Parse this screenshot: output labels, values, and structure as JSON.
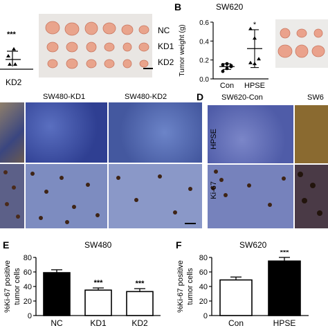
{
  "panel_a": {
    "significance": "***",
    "group_label": "KD2",
    "rows": [
      "NC",
      "KD1",
      "KD2"
    ]
  },
  "panel_b": {
    "letter": "B",
    "title": "SW620",
    "ylabel": "Tumor weight (g)",
    "yticks": [
      "0.0",
      "0.2",
      "0.4",
      "0.6"
    ],
    "groups": [
      "Con",
      "HPSE"
    ],
    "significance": "*"
  },
  "panel_c": {
    "columns": [
      "SW480-KD1",
      "SW480-KD2"
    ]
  },
  "panel_d": {
    "letter": "D",
    "columns": [
      "SW620-Con",
      "SW6"
    ],
    "rows": [
      "HPSE",
      "Ki-67"
    ]
  },
  "panel_e": {
    "letter": "E",
    "title": "SW480",
    "ylabel_line1": "%Ki-67 positive",
    "ylabel_line2": "tumor cells",
    "yticks": [
      "0",
      "20",
      "40",
      "60",
      "80"
    ],
    "categories": [
      "NC",
      "KD1",
      "KD2"
    ],
    "significance": [
      "",
      "***",
      "***"
    ]
  },
  "panel_f": {
    "letter": "F",
    "title": "SW620",
    "ylabel_line1": "%Ki-67 positive",
    "ylabel_line2": "tumor cells",
    "yticks": [
      "0",
      "20",
      "40",
      "60",
      "80"
    ],
    "categories": [
      "Con",
      "HPSE"
    ],
    "significance": [
      "",
      "***"
    ]
  },
  "chart_data": [
    {
      "type": "scatter",
      "title": "SW620",
      "ylabel": "Tumor weight (g)",
      "categories": [
        "Con",
        "HPSE"
      ],
      "means": [
        0.13,
        0.32
      ],
      "sd": [
        0.03,
        0.2
      ],
      "points": [
        [
          0.08,
          0.11,
          0.13,
          0.15,
          0.16,
          0.14
        ],
        [
          0.53,
          0.43,
          0.21,
          0.17,
          0.16
        ]
      ],
      "ylim": [
        0.0,
        0.6
      ]
    },
    {
      "type": "bar",
      "title": "SW480",
      "ylabel": "%Ki-67 positive tumor cells",
      "categories": [
        "NC",
        "KD1",
        "KD2"
      ],
      "values": [
        59,
        35,
        33
      ],
      "errors": [
        4,
        3,
        4
      ],
      "fills": [
        "#000000",
        "#ffffff",
        "#ffffff"
      ],
      "ylim": [
        0,
        80
      ]
    },
    {
      "type": "bar",
      "title": "SW620",
      "ylabel": "%Ki-67 positive tumor cells",
      "categories": [
        "Con",
        "HPSE"
      ],
      "values": [
        49,
        75
      ],
      "errors": [
        4,
        5
      ],
      "fills": [
        "#ffffff",
        "#000000"
      ],
      "ylim": [
        0,
        80
      ]
    }
  ]
}
